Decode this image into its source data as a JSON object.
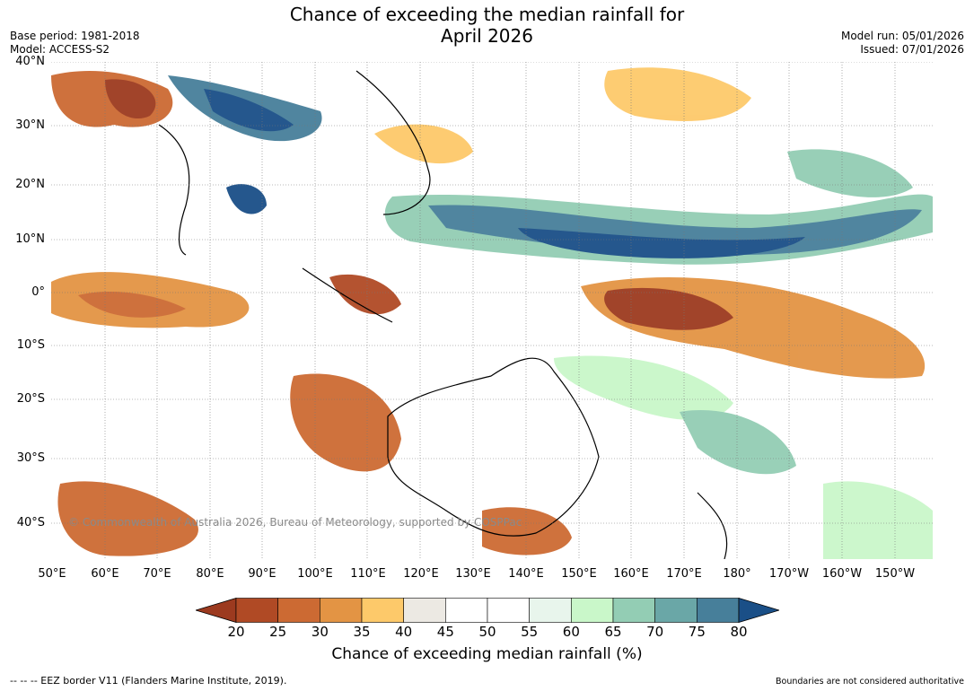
{
  "title_line1": "Chance of exceeding the median rainfall for",
  "title_line2": "April 2026",
  "meta_left": [
    "Base period: 1981-2018",
    "Model: ACCESS-S2"
  ],
  "meta_right": [
    "Model run: 05/01/2026",
    "Issued: 07/01/2026"
  ],
  "lat_labels": [
    "40°N",
    "30°N",
    "20°N",
    "10°N",
    "0°",
    "10°S",
    "20°S",
    "30°S",
    "40°S"
  ],
  "lon_labels": [
    "50°E",
    "60°E",
    "70°E",
    "80°E",
    "90°E",
    "100°E",
    "110°E",
    "120°E",
    "130°E",
    "140°E",
    "150°E",
    "160°E",
    "170°E",
    "180°",
    "170°W",
    "160°W",
    "150°W"
  ],
  "colorbar": {
    "ticks": [
      "20",
      "25",
      "30",
      "35",
      "40",
      "45",
      "50",
      "55",
      "60",
      "65",
      "70",
      "75",
      "80"
    ],
    "colors": [
      "#9c3a1f",
      "#b04a25",
      "#cc6a33",
      "#e39444",
      "#fdc96a",
      "#ece9e3",
      "#ffffff",
      "#ffffff",
      "#e8f5ec",
      "#c9f7c9",
      "#93cdb4",
      "#6aa7a7",
      "#477f9a",
      "#1a4f87"
    ],
    "label": "Chance of exceeding median rainfall (%)"
  },
  "copyright": "© Commonwealth of Australia 2026, Bureau of Meteorology, supported by COSPPac",
  "footer_left": "--  --  -- EEZ border V11 (Flanders Marine Institute, 2019).",
  "footer_right": "Boundaries are not considered authoritative"
}
